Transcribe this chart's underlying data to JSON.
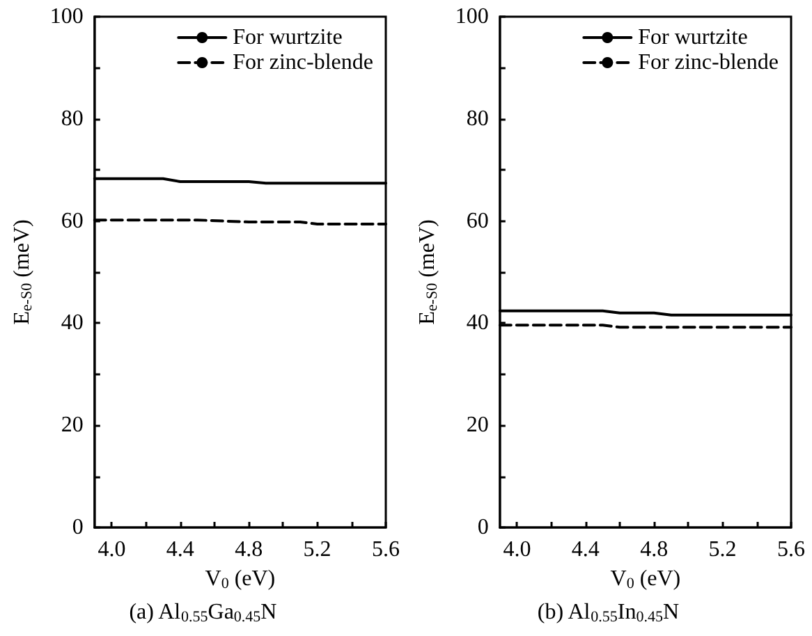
{
  "chart_data": [
    {
      "type": "line",
      "title": "(a) Al$_{0.55}$Ga$_{0.45}$N",
      "xlabel": "V$_{0}$ (eV)",
      "ylabel": "E$_{e-S0}$ (meV)",
      "xlim": [
        3.9,
        5.6
      ],
      "ylim": [
        0,
        100
      ],
      "xticks": [
        {
          "value": 4,
          "label": "4.0"
        },
        {
          "value": 4.2,
          "label": null
        },
        4.4,
        {
          "value": 4.6,
          "label": null
        },
        4.8,
        {
          "value": 5,
          "label": null
        },
        5.2,
        {
          "value": 5.4,
          "label": null
        },
        5.6
      ],
      "yticks": [
        0,
        {
          "value": 10,
          "label": null
        },
        20,
        {
          "value": 30,
          "label": null
        },
        40,
        {
          "value": 50,
          "label": null
        },
        60,
        {
          "value": 70,
          "label": null
        },
        80,
        {
          "value": 90,
          "label": null
        },
        100
      ],
      "x": [
        3.9,
        4.3,
        4.4,
        4.5,
        4.8,
        4.9,
        5.1,
        5.2,
        5.6
      ],
      "series": [
        {
          "name": "For wurtzite",
          "color": "#000000",
          "line_style": "solid",
          "values": [
            68.3,
            68.3,
            67.7,
            67.7,
            67.7,
            67.4,
            67.4,
            67.4,
            67.4
          ]
        },
        {
          "name": "For zinc-blende",
          "color": "#000000",
          "line_style": "dashed",
          "values": [
            60.2,
            60.2,
            60.2,
            60.2,
            59.8,
            59.8,
            59.8,
            59.4,
            59.4
          ]
        }
      ],
      "legend": "top right",
      "grid": false,
      "marker": "none"
    },
    {
      "type": "line",
      "title": "(b) Al$_{0.55}$In$_{0.45}$N",
      "xlabel": "V$_{0}$ (eV)",
      "ylabel": "E$_{e-S0}$ (meV)",
      "xlim": [
        3.9,
        5.6
      ],
      "ylim": [
        0,
        100
      ],
      "xticks": [
        {
          "value": 4,
          "label": "4.0"
        },
        {
          "value": 4.2,
          "label": null
        },
        4.4,
        {
          "value": 4.6,
          "label": null
        },
        4.8,
        {
          "value": 5,
          "label": null
        },
        5.2,
        {
          "value": 5.4,
          "label": null
        },
        5.6
      ],
      "yticks": [
        0,
        {
          "value": 10,
          "label": null
        },
        20,
        {
          "value": 30,
          "label": null
        },
        40,
        {
          "value": 50,
          "label": null
        },
        60,
        {
          "value": 70,
          "label": null
        },
        80,
        {
          "value": 90,
          "label": null
        },
        100
      ],
      "x": [
        3.9,
        4.5,
        4.6,
        4.8,
        4.9,
        5.6
      ],
      "series": [
        {
          "name": "For wurtzite",
          "color": "#000000",
          "line_style": "solid",
          "values": [
            42.4,
            42.4,
            42.0,
            42.0,
            41.6,
            41.6
          ]
        },
        {
          "name": "For zinc-blende",
          "color": "#000000",
          "line_style": "dashed",
          "values": [
            39.6,
            39.6,
            39.2,
            39.2,
            39.2,
            39.2
          ]
        }
      ],
      "legend": "top right",
      "grid": false,
      "marker": "none"
    }
  ]
}
